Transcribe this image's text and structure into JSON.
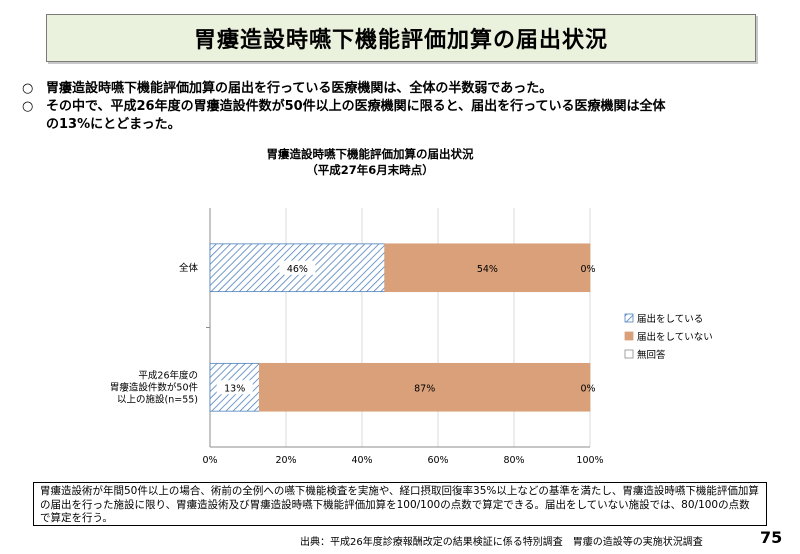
{
  "slide_title": "胃瘻造設時嚥下機能評価加算の届出状況",
  "bullets": [
    {
      "mark": "○",
      "text": "胃瘻造設時嚥下機能評価加算の届出を行っている医療機関は、全体の半数弱であった。"
    },
    {
      "mark": "○",
      "text": "その中で、平成26年度の胃瘻造設件数が50件以上の医療機関に限ると、届出を行っている医療機関は全体",
      "cont": "の13%にとどまった。"
    }
  ],
  "note": "胃瘻造設術が年間50件以上の場合、術前の全例への嚥下機能検査を実施や、経口摂取回復率35%以上などの基準を満たし、胃瘻造設時嚥下機能評価加算の届出を行った施設に限り、胃瘻造設術及び胃瘻造設時嚥下機能評価加算を100/100の点数で算定できる。届出をしていない施設では、80/100の点数で算定を行う。",
  "source": "出典：平成26年度診療報酬改定の結果検証に係る特別調査　胃瘻の造設等の実施状況調査",
  "page_number": "75",
  "colors": {
    "hatched": "#4f81bd",
    "orange": "#d9a07a",
    "title_bg": "#eaf1dd"
  },
  "chart_data": {
    "type": "bar",
    "orientation": "horizontal",
    "stacked": "100%",
    "title": "胃瘻造設時嚥下機能評価加算の届出状況",
    "subtitle": "（平成27年6月末時点）",
    "categories": [
      "全体",
      "平成26年度の胃瘻造設件数が50件以上の施設(n=55)"
    ],
    "category_lines": [
      [
        "全体"
      ],
      [
        "平成26年度の",
        "胃瘻造設件数が50件",
        "以上の施設(n=55)"
      ]
    ],
    "series": [
      {
        "name": "届出をしている",
        "values": [
          46,
          13
        ],
        "labels": [
          "46%",
          "13%"
        ],
        "color": "#4f81bd",
        "pattern": "hatch"
      },
      {
        "name": "届出をしていない",
        "values": [
          54,
          87
        ],
        "labels": [
          "54%",
          "87%"
        ],
        "color": "#d9a07a",
        "pattern": "solid"
      },
      {
        "name": "無回答",
        "values": [
          0,
          0
        ],
        "labels": [
          "0%",
          "0%"
        ],
        "color": "#ffffff",
        "pattern": "solid"
      }
    ],
    "xlim": [
      0,
      100
    ],
    "xticks": [
      "0%",
      "20%",
      "40%",
      "60%",
      "80%",
      "100%"
    ],
    "legend": "right",
    "grid": true
  }
}
